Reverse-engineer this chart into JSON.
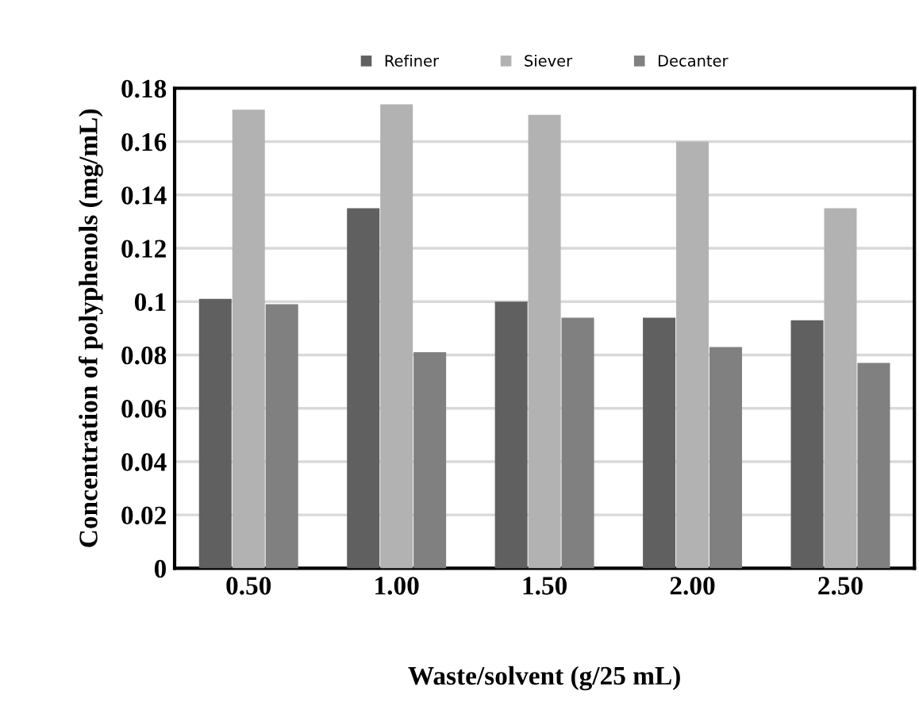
{
  "chart_data": {
    "type": "bar",
    "xlabel": "Waste/solvent (g/25 mL)",
    "ylabel": "Concentration of polyphenols (mg/mL)",
    "categories": [
      "0.50",
      "1.00",
      "1.50",
      "2.00",
      "2.50"
    ],
    "series": [
      {
        "name": "Refiner",
        "color": "#606060",
        "values": [
          0.101,
          0.135,
          0.1,
          0.094,
          0.093
        ]
      },
      {
        "name": "Siever",
        "color": "#b2b2b2",
        "values": [
          0.172,
          0.174,
          0.17,
          0.16,
          0.135
        ]
      },
      {
        "name": "Decanter",
        "color": "#808080",
        "values": [
          0.099,
          0.081,
          0.094,
          0.083,
          0.077
        ]
      }
    ],
    "ylim": [
      0,
      0.18
    ],
    "yticks": [
      0,
      0.02,
      0.04,
      0.06,
      0.08,
      {
        "value": 0.1,
        "label": "0.1"
      },
      0.12,
      0.14,
      0.16,
      0.18
    ],
    "grid": "y",
    "legend": "top"
  }
}
